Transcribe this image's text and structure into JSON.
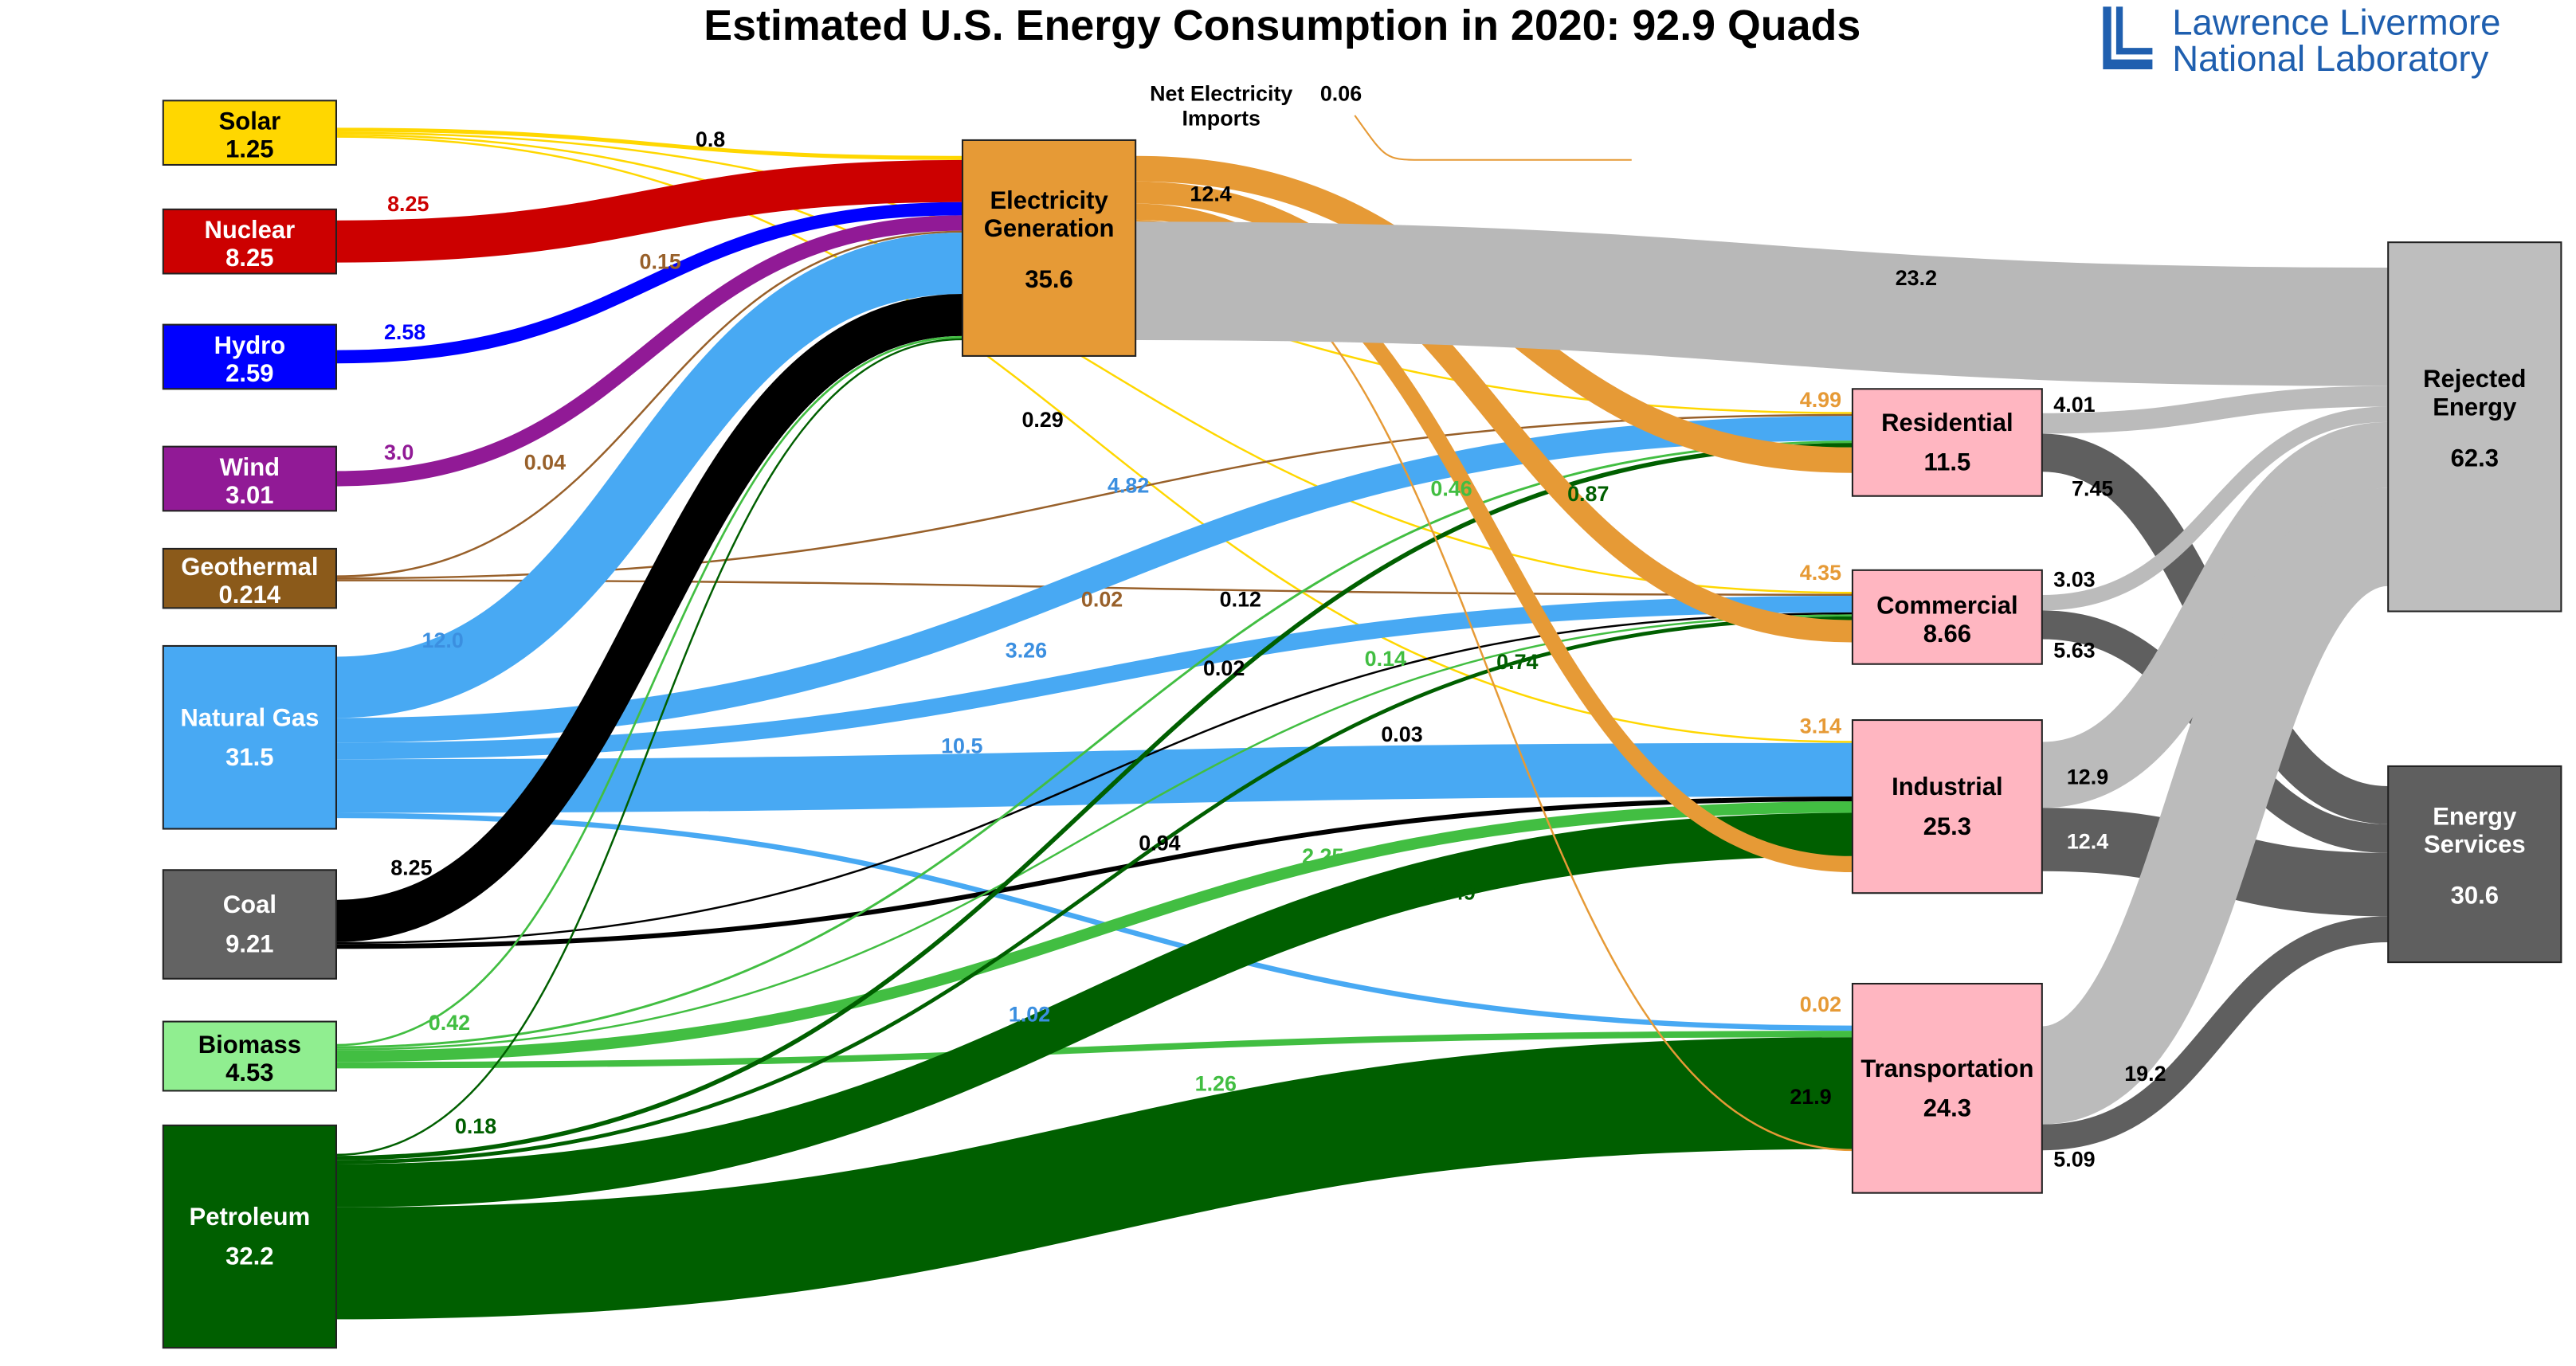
{
  "title": "Estimated U.S. Energy Consumption in 2020: 92.9 Quads",
  "logo": {
    "line1": "Lawrence Livermore",
    "line2": "National Laboratory",
    "color": "#1F5FAF"
  },
  "net_imports": {
    "label_line1": "Net Electricity",
    "label_line2": "Imports",
    "value": "0.06"
  },
  "electricity_to_sectors_label": "12.4",
  "nodes": [
    {
      "id": "solar",
      "name": "Solar",
      "value": "1.25",
      "fill": "#FFD700",
      "text": "#000000"
    },
    {
      "id": "nuclear",
      "name": "Nuclear",
      "value": "8.25",
      "fill": "#CC0000",
      "text": "#FFFFFF"
    },
    {
      "id": "hydro",
      "name": "Hydro",
      "value": "2.59",
      "fill": "#0000FF",
      "text": "#FFFFFF"
    },
    {
      "id": "wind",
      "name": "Wind",
      "value": "3.01",
      "fill": "#911A96",
      "text": "#FFFFFF"
    },
    {
      "id": "geo",
      "name": "Geothermal",
      "value": "0.214",
      "fill": "#8B5A1A",
      "text": "#FFFFFF"
    },
    {
      "id": "ng",
      "name": "Natural Gas",
      "value": "31.5",
      "fill": "#48A9F3",
      "text": "#FFFFFF"
    },
    {
      "id": "coal",
      "name": "Coal",
      "value": "9.21",
      "fill": "#636363",
      "text": "#FFFFFF"
    },
    {
      "id": "bio",
      "name": "Biomass",
      "value": "4.53",
      "fill": "#90EE90",
      "text": "#000000"
    },
    {
      "id": "pet",
      "name": "Petroleum",
      "value": "32.2",
      "fill": "#005F00",
      "text": "#FFFFFF"
    },
    {
      "id": "elec",
      "name": "Electricity Generation",
      "value": "35.6",
      "fill": "#E69A36",
      "text": "#000000"
    },
    {
      "id": "res",
      "name": "Residential",
      "value": "11.5",
      "fill": "#FFB6C1",
      "text": "#000000"
    },
    {
      "id": "com",
      "name": "Commercial",
      "value": "8.66",
      "fill": "#FFB6C1",
      "text": "#000000"
    },
    {
      "id": "ind",
      "name": "Industrial",
      "value": "25.3",
      "fill": "#FFB6C1",
      "text": "#000000"
    },
    {
      "id": "trans",
      "name": "Transportation",
      "value": "24.3",
      "fill": "#FFB6C1",
      "text": "#000000"
    },
    {
      "id": "rej",
      "name": "Rejected Energy",
      "value": "62.3",
      "fill": "#BEBEBE",
      "text": "#000000"
    },
    {
      "id": "serv",
      "name": "Energy Services",
      "value": "30.6",
      "fill": "#5F5F5F",
      "text": "#FFFFFF"
    }
  ],
  "flows": [
    {
      "from": "solar",
      "to": "elec",
      "value": 0.8,
      "label": "0.8",
      "color": "#FFD700",
      "label_color": "#000000"
    },
    {
      "from": "solar",
      "to": "res",
      "value": 0.29,
      "label": "0.29",
      "color": "#FFD700",
      "label_color": "#000000"
    },
    {
      "from": "solar",
      "to": "com",
      "value": 0.12,
      "label": "0.12",
      "color": "#FFD700",
      "label_color": "#000000"
    },
    {
      "from": "solar",
      "to": "ind",
      "value": 0.03,
      "label": "0.03",
      "color": "#FFD700",
      "label_color": "#000000"
    },
    {
      "from": "nuclear",
      "to": "elec",
      "value": 8.25,
      "label": "8.25",
      "color": "#CC0000",
      "label_color": "#CC0000"
    },
    {
      "from": "hydro",
      "to": "elec",
      "value": 2.58,
      "label": "2.58",
      "color": "#0000FF",
      "label_color": "#0000FF"
    },
    {
      "from": "wind",
      "to": "elec",
      "value": 3.0,
      "label": "3.0",
      "color": "#911A96",
      "label_color": "#911A96"
    },
    {
      "from": "geo",
      "to": "elec",
      "value": 0.15,
      "label": "0.15",
      "color": "#98602A",
      "label_color": "#98602A"
    },
    {
      "from": "geo",
      "to": "res",
      "value": 0.04,
      "label": "0.04",
      "color": "#98602A",
      "label_color": "#98602A"
    },
    {
      "from": "geo",
      "to": "com",
      "value": 0.02,
      "label": "0.02",
      "color": "#98602A",
      "label_color": "#98602A"
    },
    {
      "from": "ng",
      "to": "elec",
      "value": 12.0,
      "label": "12.0",
      "color": "#48A9F3",
      "label_color": "#3B8FE0"
    },
    {
      "from": "ng",
      "to": "res",
      "value": 4.82,
      "label": "4.82",
      "color": "#48A9F3",
      "label_color": "#3B8FE0"
    },
    {
      "from": "ng",
      "to": "com",
      "value": 3.26,
      "label": "3.26",
      "color": "#48A9F3",
      "label_color": "#3B8FE0"
    },
    {
      "from": "ng",
      "to": "ind",
      "value": 10.5,
      "label": "10.5",
      "color": "#48A9F3",
      "label_color": "#3B8FE0"
    },
    {
      "from": "ng",
      "to": "trans",
      "value": 1.02,
      "label": "1.02",
      "color": "#48A9F3",
      "label_color": "#3B8FE0"
    },
    {
      "from": "coal",
      "to": "elec",
      "value": 8.25,
      "label": "8.25",
      "color": "#000000",
      "label_color": "#000000"
    },
    {
      "from": "coal",
      "to": "com",
      "value": 0.02,
      "label": "0.02",
      "color": "#000000",
      "label_color": "#000000"
    },
    {
      "from": "coal",
      "to": "ind",
      "value": 0.94,
      "label": "0.94",
      "color": "#000000",
      "label_color": "#000000"
    },
    {
      "from": "bio",
      "to": "elec",
      "value": 0.42,
      "label": "0.42",
      "color": "#42BE42",
      "label_color": "#42BE42"
    },
    {
      "from": "bio",
      "to": "res",
      "value": 0.46,
      "label": "0.46",
      "color": "#42BE42",
      "label_color": "#42BE42"
    },
    {
      "from": "bio",
      "to": "com",
      "value": 0.14,
      "label": "0.14",
      "color": "#42BE42",
      "label_color": "#42BE42"
    },
    {
      "from": "bio",
      "to": "ind",
      "value": 2.25,
      "label": "2.25",
      "color": "#42BE42",
      "label_color": "#42BE42"
    },
    {
      "from": "bio",
      "to": "trans",
      "value": 1.26,
      "label": "1.26",
      "color": "#42BE42",
      "label_color": "#42BE42"
    },
    {
      "from": "pet",
      "to": "elec",
      "value": 0.18,
      "label": "0.18",
      "color": "#005F00",
      "label_color": "#005F00"
    },
    {
      "from": "pet",
      "to": "res",
      "value": 0.87,
      "label": "0.87",
      "color": "#005F00",
      "label_color": "#005F00"
    },
    {
      "from": "pet",
      "to": "com",
      "value": 0.74,
      "label": "0.74",
      "color": "#005F00",
      "label_color": "#005F00"
    },
    {
      "from": "pet",
      "to": "ind",
      "value": 8.49,
      "label": "8.49",
      "color": "#005F00",
      "label_color": "#005F00"
    },
    {
      "from": "pet",
      "to": "trans",
      "value": 21.9,
      "label": "21.9",
      "color": "#005F00",
      "label_color": "#000000"
    },
    {
      "from": "elec",
      "to": "res",
      "value": 4.99,
      "label": "4.99",
      "color": "#E69A36",
      "label_color": "#E69A36"
    },
    {
      "from": "elec",
      "to": "com",
      "value": 4.35,
      "label": "4.35",
      "color": "#E69A36",
      "label_color": "#E69A36"
    },
    {
      "from": "elec",
      "to": "ind",
      "value": 3.14,
      "label": "3.14",
      "color": "#E69A36",
      "label_color": "#E69A36"
    },
    {
      "from": "elec",
      "to": "trans",
      "value": 0.02,
      "label": "0.02",
      "color": "#E69A36",
      "label_color": "#E69A36"
    },
    {
      "from": "elec",
      "to": "rej",
      "value": 23.2,
      "label": "23.2",
      "color": "#B8B8B8",
      "label_color": "#000000"
    },
    {
      "from": "res",
      "to": "rej",
      "value": 4.01,
      "label": "4.01",
      "color": "#BBBBBB",
      "label_color": "#000000"
    },
    {
      "from": "res",
      "to": "serv",
      "value": 7.45,
      "label": "7.45",
      "color": "#5F5F5F",
      "label_color": "#000000"
    },
    {
      "from": "com",
      "to": "rej",
      "value": 3.03,
      "label": "3.03",
      "color": "#BBBBBB",
      "label_color": "#000000"
    },
    {
      "from": "com",
      "to": "serv",
      "value": 5.63,
      "label": "5.63",
      "color": "#5F5F5F",
      "label_color": "#000000"
    },
    {
      "from": "ind",
      "to": "rej",
      "value": 12.9,
      "label": "12.9",
      "color": "#BBBBBB",
      "label_color": "#000000"
    },
    {
      "from": "ind",
      "to": "serv",
      "value": 12.4,
      "label": "12.4",
      "color": "#5F5F5F",
      "label_color": "#FFFFFF"
    },
    {
      "from": "trans",
      "to": "rej",
      "value": 19.2,
      "label": "19.2",
      "color": "#BBBBBB",
      "label_color": "#000000"
    },
    {
      "from": "trans",
      "to": "serv",
      "value": 5.09,
      "label": "5.09",
      "color": "#5F5F5F",
      "label_color": "#000000"
    }
  ]
}
